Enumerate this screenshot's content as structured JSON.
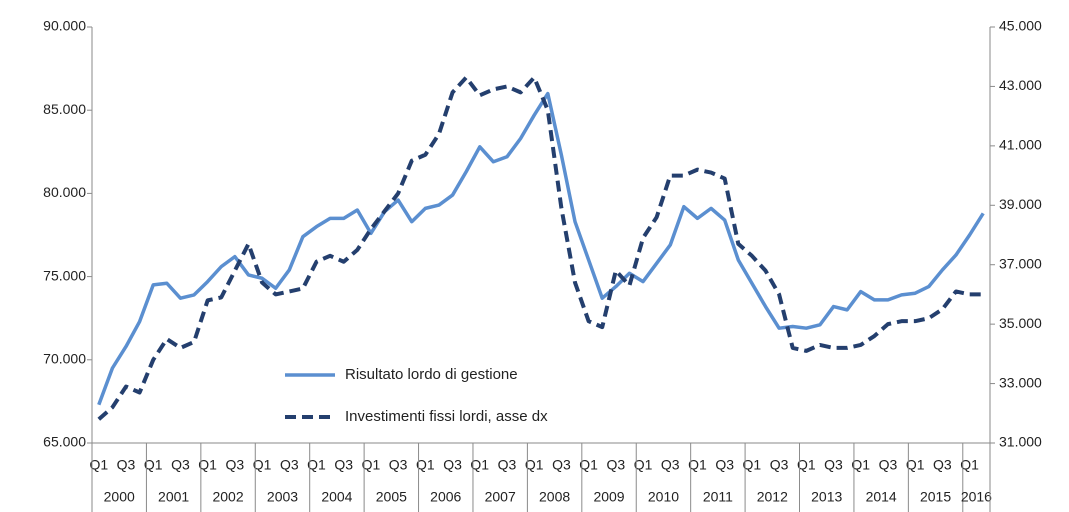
{
  "chart_data": {
    "type": "line",
    "categories": [
      "Q1",
      null,
      "Q3",
      null,
      "Q1",
      null,
      "Q3",
      null,
      "Q1",
      null,
      "Q3",
      null,
      "Q1",
      null,
      "Q3",
      null,
      "Q1",
      null,
      "Q3",
      null,
      "Q1",
      null,
      "Q3",
      null,
      "Q1",
      null,
      "Q3",
      null,
      "Q1",
      null,
      "Q3",
      null,
      "Q1",
      null,
      "Q3",
      null,
      "Q1",
      null,
      "Q3",
      null,
      "Q1",
      null,
      "Q3",
      null,
      "Q1",
      null,
      "Q3",
      null,
      "Q1",
      null,
      "Q3",
      null,
      "Q1",
      null,
      "Q3",
      null,
      "Q1",
      null,
      "Q3",
      null,
      "Q1",
      null,
      "Q3",
      null,
      "Q1",
      null
    ],
    "years": [
      "2000",
      "2001",
      "2002",
      "2003",
      "2004",
      "2005",
      "2006",
      "2007",
      "2008",
      "2009",
      "2010",
      "2011",
      "2012",
      "2013",
      "2014",
      "2015",
      "2016"
    ],
    "series": [
      {
        "name": "Risultato lordo di gestione",
        "color": "#5b8fd0",
        "dashed": false,
        "axis": "y",
        "values": [
          67300,
          69500,
          70800,
          72300,
          74500,
          74600,
          73700,
          73900,
          74700,
          75600,
          76200,
          75100,
          74900,
          74300,
          75400,
          77400,
          78000,
          78500,
          78500,
          79000,
          77600,
          78900,
          79600,
          78300,
          79100,
          79300,
          79900,
          81300,
          82800,
          81900,
          82200,
          83300,
          84700,
          86000,
          82300,
          78300,
          76000,
          73700,
          74400,
          75200,
          74700,
          75800,
          76900,
          79200,
          78500,
          79100,
          78400,
          76000,
          74600,
          73200,
          71900,
          72000,
          71900,
          72100,
          73200,
          73000,
          74100,
          73600,
          73600,
          73900,
          74000,
          74400,
          75400,
          76300,
          77500,
          78800
        ]
      },
      {
        "name": "Investimenti fissi lordi, asse dx",
        "color": "#243f6e",
        "dashed": true,
        "axis": "y2",
        "values": [
          31800,
          32200,
          32900,
          32700,
          33800,
          34500,
          34200,
          34400,
          35800,
          35900,
          36800,
          37700,
          36400,
          36000,
          36100,
          36200,
          37100,
          37300,
          37100,
          37500,
          38200,
          38800,
          39400,
          40500,
          40700,
          41400,
          42800,
          43300,
          42700,
          42900,
          43000,
          42800,
          43300,
          42200,
          38900,
          36400,
          35100,
          34900,
          36800,
          36300,
          37900,
          38600,
          40000,
          40000,
          40200,
          40100,
          39900,
          37700,
          37300,
          36800,
          36000,
          34200,
          34100,
          34300,
          34200,
          34200,
          34300,
          34600,
          35000,
          35100,
          35100,
          35200,
          35500,
          36100,
          36000,
          36000
        ]
      }
    ],
    "ylim": [
      65000,
      90000
    ],
    "yticks": [
      {
        "value": 65000,
        "label": "65.000"
      },
      {
        "value": 70000,
        "label": "70.000"
      },
      {
        "value": 75000,
        "label": "75.000"
      },
      {
        "value": 80000,
        "label": "80.000"
      },
      {
        "value": 85000,
        "label": "85.000"
      },
      {
        "value": 90000,
        "label": "90.000"
      }
    ],
    "y2lim": [
      31000,
      45000
    ],
    "y2ticks": [
      {
        "value": 31000,
        "label": "31.000"
      },
      {
        "value": 33000,
        "label": "33.000"
      },
      {
        "value": 35000,
        "label": "35.000"
      },
      {
        "value": 37000,
        "label": "37.000"
      },
      {
        "value": 39000,
        "label": "39.000"
      },
      {
        "value": 41000,
        "label": "41.000"
      },
      {
        "value": 43000,
        "label": "43.000"
      },
      {
        "value": 45000,
        "label": "45.000"
      }
    ],
    "grid": false,
    "legend": "lower-left"
  }
}
